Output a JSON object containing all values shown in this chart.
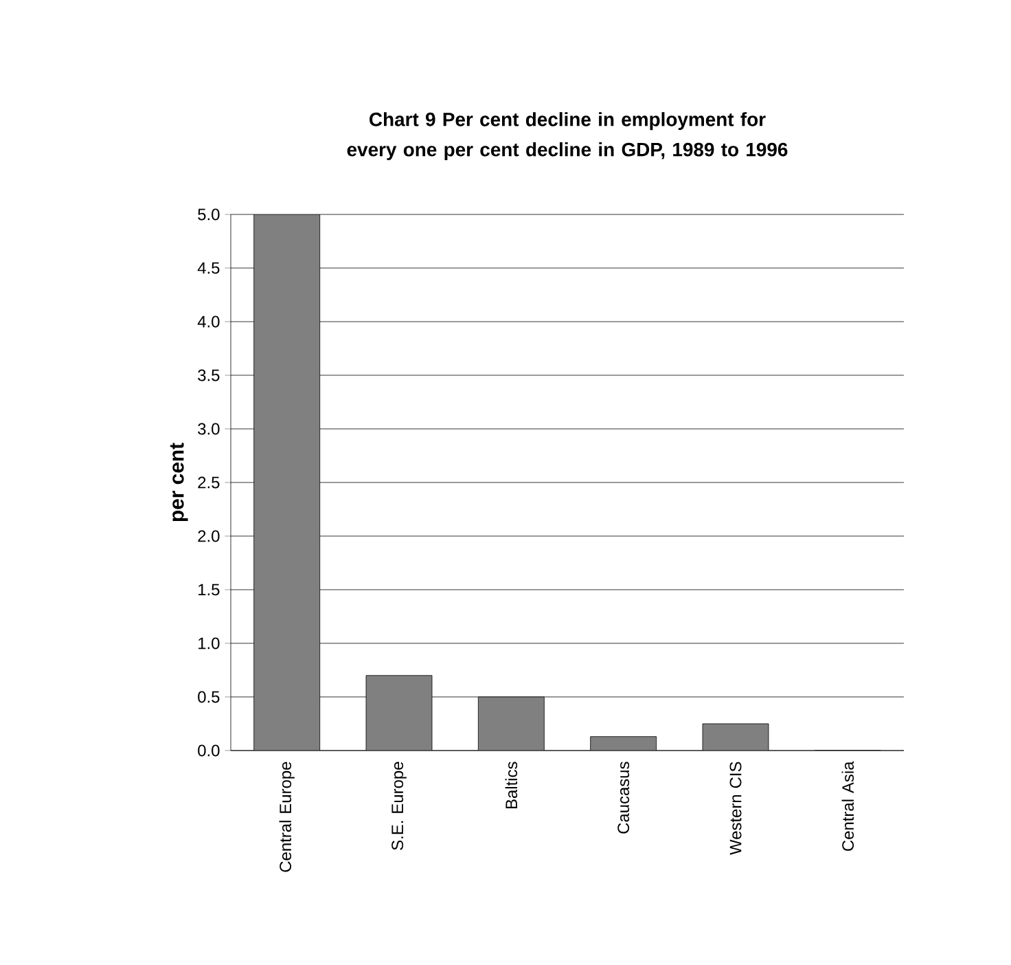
{
  "chart_data": {
    "type": "bar",
    "title": "Chart 9  Per cent decline in employment for every one per cent decline in GDP, 1989 to 1996",
    "ylabel": "per cent",
    "categories": [
      "Central Europe",
      "S.E. Europe",
      "Baltics",
      "Caucasus",
      "Western CIS",
      "Central Asia"
    ],
    "values": [
      5.0,
      0.7,
      0.5,
      0.13,
      0.25,
      0.0
    ],
    "color": "#808080",
    "ylim": [
      0,
      5
    ],
    "yticks": [
      {
        "value": 0,
        "label": "0.0"
      },
      {
        "value": 0.5,
        "label": "0.5"
      },
      {
        "value": 1,
        "label": "1.0"
      },
      {
        "value": 1.5,
        "label": "1.5"
      },
      {
        "value": 2,
        "label": "2.0"
      },
      {
        "value": 2.5,
        "label": "2.5"
      },
      {
        "value": 3,
        "label": "3.0"
      },
      {
        "value": 3.5,
        "label": "3.5"
      },
      {
        "value": 4,
        "label": "4.0"
      },
      {
        "value": 4.5,
        "label": "4.5"
      },
      {
        "value": 5,
        "label": "5.0"
      }
    ],
    "grid": "y"
  }
}
